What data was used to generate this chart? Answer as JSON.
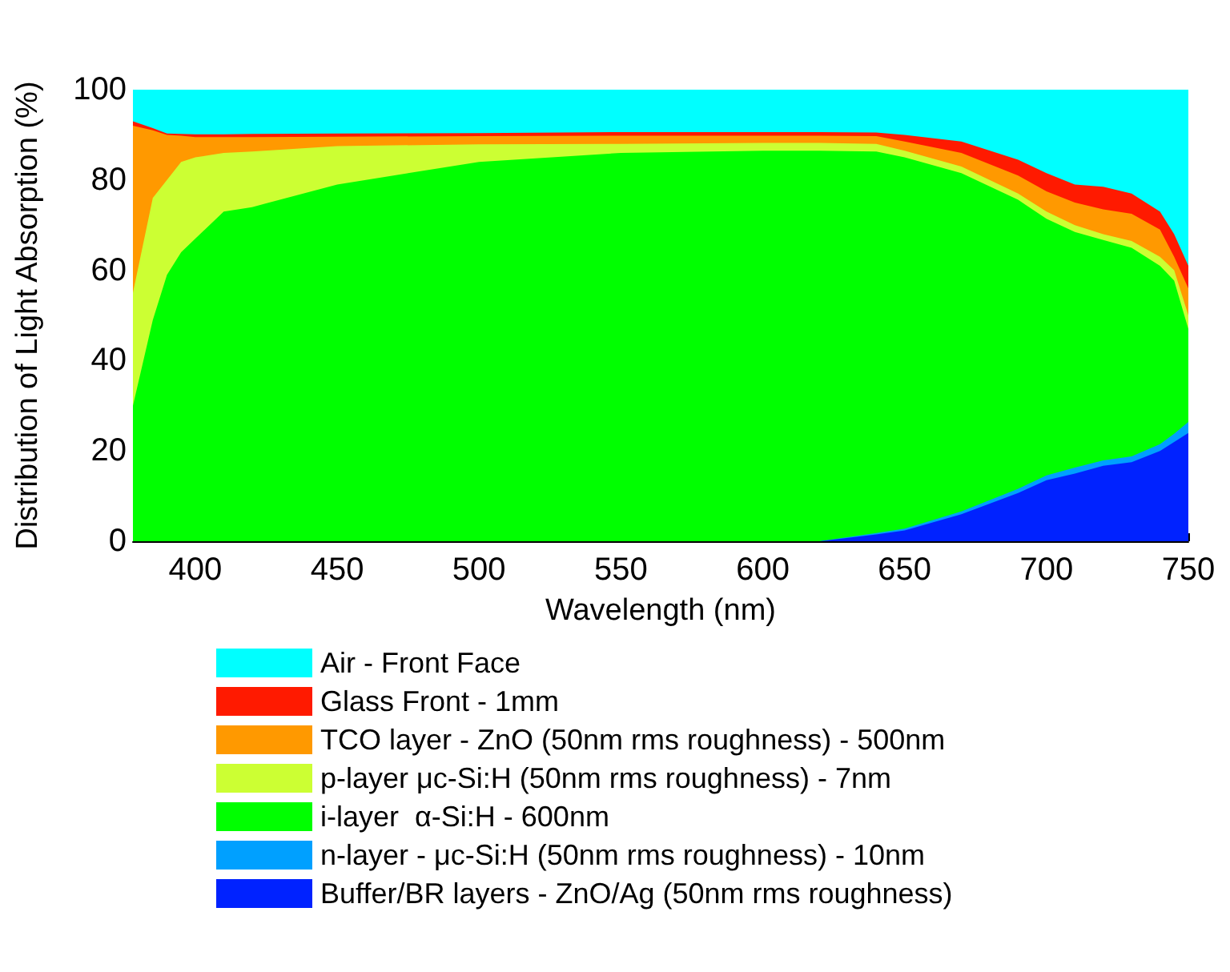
{
  "chart_data": {
    "type": "area",
    "stacked": true,
    "xlabel": "Wavelength (nm)",
    "ylabel": "Distribution of Light Absorption (%)",
    "x": [
      378,
      385,
      390,
      395,
      400,
      410,
      420,
      450,
      500,
      550,
      600,
      620,
      640,
      650,
      670,
      690,
      700,
      710,
      720,
      730,
      740,
      745,
      750
    ],
    "xlim": [
      378,
      750
    ],
    "xticks": [
      400,
      450,
      500,
      550,
      600,
      650,
      700,
      750
    ],
    "ylim": [
      0,
      100
    ],
    "yticks": [
      0,
      20,
      40,
      60,
      80,
      100
    ],
    "grid": false,
    "legend": "bottom",
    "series": [
      {
        "name": "Buffer/BR layers - ZnO/Ag (50nm rms roughness)",
        "color": "#0022ff",
        "values": [
          0,
          0,
          0,
          0,
          0,
          0,
          0,
          0,
          0,
          0,
          0,
          0,
          1.5,
          2.4,
          6,
          10.7,
          13.5,
          15,
          16.7,
          17.5,
          20,
          22,
          24
        ]
      },
      {
        "name": "n-layer - μc-Si:H (50nm rms roughness) - 10nm",
        "color": "#00a0ff",
        "values": [
          0,
          0,
          0,
          0,
          0,
          0,
          0,
          0,
          0,
          0,
          0,
          0,
          0.3,
          0.4,
          0.6,
          0.9,
          1.1,
          1.3,
          1.2,
          1.3,
          1.5,
          1.8,
          2.4
        ]
      },
      {
        "name": "i-layer  α-Si:H - 600nm",
        "color": "#00ff00",
        "values": [
          30,
          49,
          59,
          64,
          67,
          73,
          74,
          79,
          84,
          86,
          86.5,
          86.5,
          84.5,
          82.2,
          74.9,
          64,
          56.8,
          52.2,
          48.8,
          46.2,
          39.5,
          33.9,
          20.6
        ]
      },
      {
        "name": "p-layer μc-Si:H (50nm rms roughness) - 7nm",
        "color": "#ccff33",
        "values": [
          25,
          27,
          21,
          20,
          18,
          13,
          12.3,
          8.5,
          3.9,
          2,
          1.7,
          1.7,
          1.7,
          1.5,
          1.5,
          1.4,
          1.6,
          1.5,
          1.3,
          1.5,
          2,
          2.3,
          3
        ]
      },
      {
        "name": "TCO layer - ZnO (50nm rms roughness) - 500nm",
        "color": "#ff9900",
        "values": [
          37,
          15,
          10,
          5.8,
          4.5,
          3.5,
          3.2,
          2.1,
          1.8,
          1.8,
          1.6,
          1.6,
          1.7,
          2,
          3,
          4,
          4.5,
          5,
          5.5,
          6,
          6,
          3,
          6
        ]
      },
      {
        "name": "Glass Front - 1mm",
        "color": "#ff1a00",
        "values": [
          1,
          0.5,
          0.3,
          0.4,
          0.6,
          0.6,
          0.7,
          0.7,
          0.7,
          0.8,
          0.8,
          0.8,
          0.8,
          1.5,
          2.5,
          3.5,
          4,
          4,
          5,
          4.5,
          4,
          5,
          5
        ]
      },
      {
        "name": "Air - Front Face",
        "color": "#00ffff",
        "values": [
          7,
          8.5,
          9.7,
          9.8,
          9.9,
          9.9,
          9.8,
          9.7,
          9.6,
          9.4,
          9.4,
          9.4,
          9.5,
          10,
          11.5,
          15.5,
          18.5,
          21,
          21.5,
          23,
          27,
          32,
          39
        ]
      }
    ]
  }
}
